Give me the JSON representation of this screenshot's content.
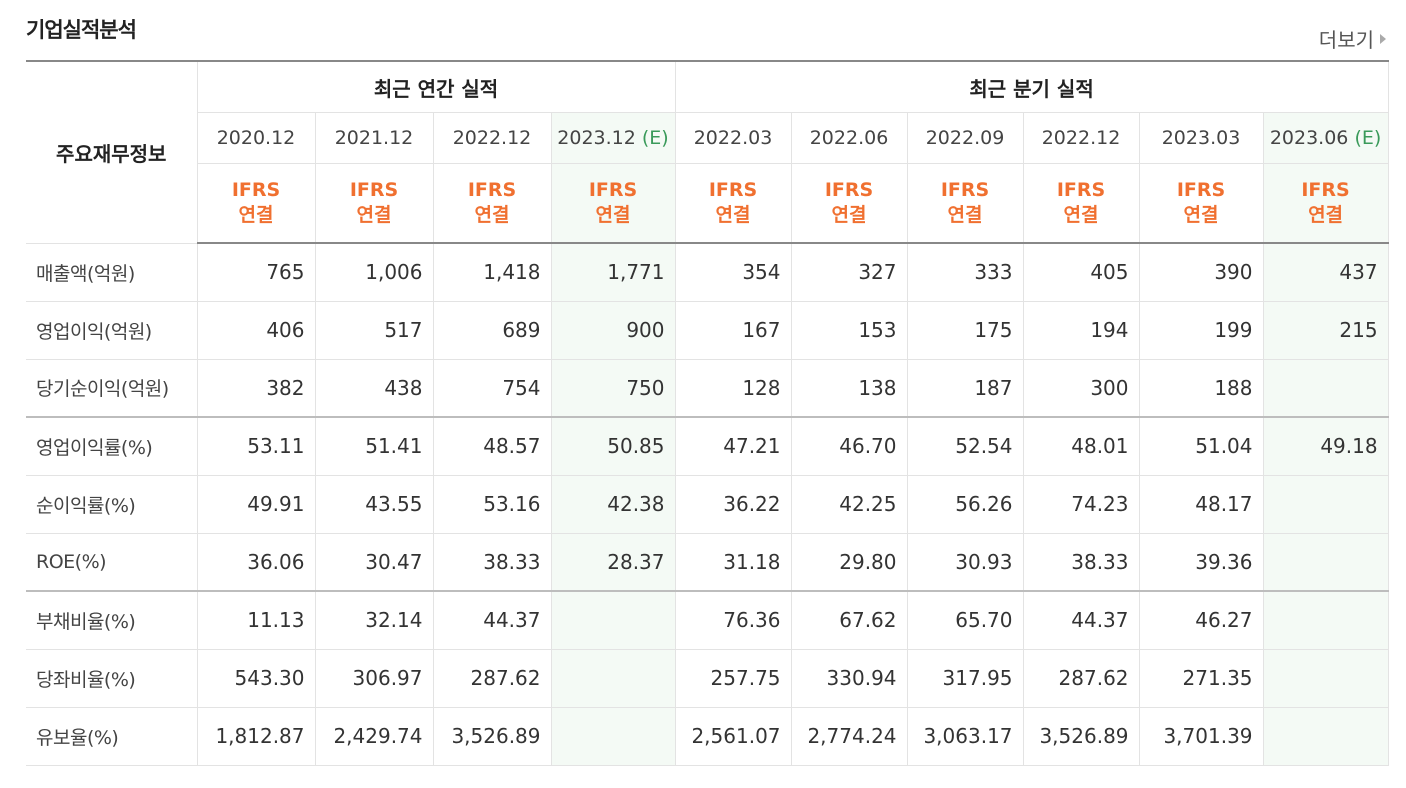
{
  "section": {
    "title": "기업실적분석",
    "more_label": "더보기"
  },
  "table": {
    "corner_label": "주요재무정보",
    "group_annual": "최근 연간 실적",
    "group_quarter": "최근 분기 실적",
    "periods": [
      {
        "label": "2020.12",
        "est": ""
      },
      {
        "label": "2021.12",
        "est": ""
      },
      {
        "label": "2022.12",
        "est": ""
      },
      {
        "label": "2023.12",
        "est": "(E)"
      },
      {
        "label": "2022.03",
        "est": ""
      },
      {
        "label": "2022.06",
        "est": ""
      },
      {
        "label": "2022.09",
        "est": ""
      },
      {
        "label": "2022.12",
        "est": ""
      },
      {
        "label": "2023.03",
        "est": ""
      },
      {
        "label": "2023.06",
        "est": "(E)"
      }
    ],
    "basis_line1": "IFRS",
    "basis_line2": "연결",
    "rows": [
      {
        "label": "매출액(억원)",
        "values": [
          "765",
          "1,006",
          "1,418",
          "1,771",
          "354",
          "327",
          "333",
          "405",
          "390",
          "437"
        ]
      },
      {
        "label": "영업이익(억원)",
        "values": [
          "406",
          "517",
          "689",
          "900",
          "167",
          "153",
          "175",
          "194",
          "199",
          "215"
        ]
      },
      {
        "label": "당기순이익(억원)",
        "values": [
          "382",
          "438",
          "754",
          "750",
          "128",
          "138",
          "187",
          "300",
          "188",
          ""
        ]
      },
      {
        "label": "영업이익률(%)",
        "values": [
          "53.11",
          "51.41",
          "48.57",
          "50.85",
          "47.21",
          "46.70",
          "52.54",
          "48.01",
          "51.04",
          "49.18"
        ]
      },
      {
        "label": "순이익률(%)",
        "values": [
          "49.91",
          "43.55",
          "53.16",
          "42.38",
          "36.22",
          "42.25",
          "56.26",
          "74.23",
          "48.17",
          ""
        ]
      },
      {
        "label": "ROE(%)",
        "values": [
          "36.06",
          "30.47",
          "38.33",
          "28.37",
          "31.18",
          "29.80",
          "30.93",
          "38.33",
          "39.36",
          ""
        ]
      },
      {
        "label": "부채비율(%)",
        "values": [
          "11.13",
          "32.14",
          "44.37",
          "",
          "76.36",
          "67.62",
          "65.70",
          "44.37",
          "46.27",
          ""
        ]
      },
      {
        "label": "당좌비율(%)",
        "values": [
          "543.30",
          "306.97",
          "287.62",
          "",
          "257.75",
          "330.94",
          "317.95",
          "287.62",
          "271.35",
          ""
        ]
      },
      {
        "label": "유보율(%)",
        "values": [
          "1,812.87",
          "2,429.74",
          "3,526.89",
          "",
          "2,561.07",
          "2,774.24",
          "3,063.17",
          "3,526.89",
          "3,701.39",
          ""
        ]
      }
    ]
  },
  "colors": {
    "ifrs": "#f07030",
    "estimate": "#3a9a5a",
    "estimate_shade": "#f4faf5"
  }
}
